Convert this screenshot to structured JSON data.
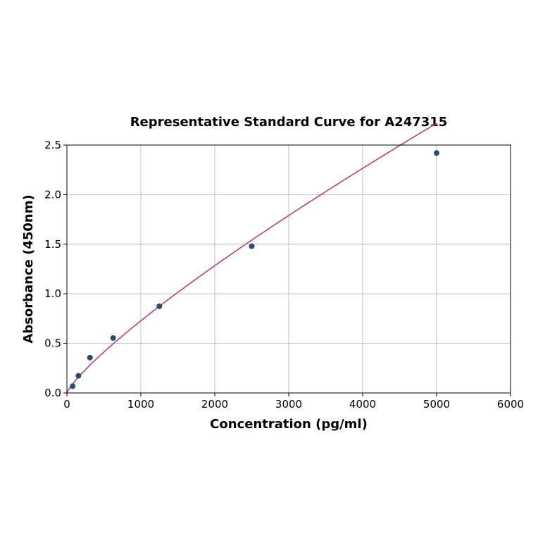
{
  "chart_data": {
    "type": "scatter",
    "title": "Representative Standard Curve for A247315",
    "xlabel": "Concentration (pg/ml)",
    "ylabel": "Absorbance (450nm)",
    "xlim": [
      0,
      6000
    ],
    "ylim": [
      0,
      2.5
    ],
    "xticks": [
      "0",
      "1000",
      "2000",
      "3000",
      "4000",
      "5000",
      "6000"
    ],
    "yticks": [
      "0.0",
      "0.5",
      "1.0",
      "1.5",
      "2.0",
      "2.5"
    ],
    "grid": true,
    "points": [
      {
        "x": 78,
        "y": 0.068
      },
      {
        "x": 156,
        "y": 0.173
      },
      {
        "x": 312,
        "y": 0.356
      },
      {
        "x": 625,
        "y": 0.554
      },
      {
        "x": 1250,
        "y": 0.874
      },
      {
        "x": 2500,
        "y": 1.48
      },
      {
        "x": 5000,
        "y": 2.42
      }
    ],
    "fit_curve": true,
    "colors": {
      "points": "#2e4a6e",
      "curve": "#b5446e",
      "grid": "#b0b0b0"
    }
  }
}
